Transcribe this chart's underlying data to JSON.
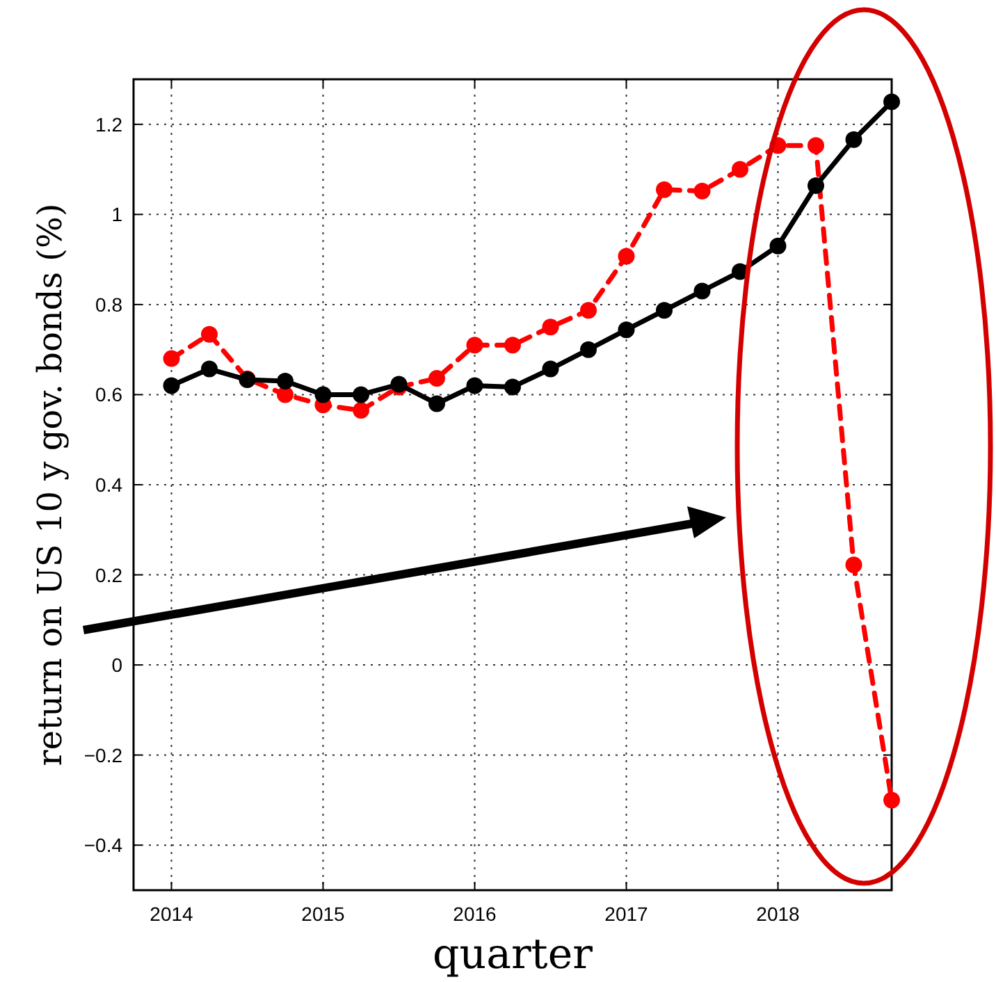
{
  "chart_data": {
    "type": "line",
    "xlabel": "quarter",
    "ylabel": "return on US 10 y gov. bonds (%)",
    "x": [
      2014,
      2014.25,
      2014.5,
      2014.75,
      2015,
      2015.25,
      2015.5,
      2015.75,
      2016,
      2016.25,
      2016.5,
      2016.75,
      2017,
      2017.25,
      2017.5,
      2017.75,
      2018,
      2018.25,
      2018.5,
      2018.75
    ],
    "series": [
      {
        "color": "#ff0000",
        "line_style": "dashed",
        "values": [
          0.68,
          0.734,
          0.635,
          0.6,
          0.577,
          0.565,
          0.617,
          0.636,
          0.71,
          0.71,
          0.75,
          0.787,
          0.907,
          1.055,
          1.052,
          1.1,
          1.153,
          1.153,
          0.222,
          -0.3
        ]
      },
      {
        "color": "#000000",
        "line_style": "solid",
        "values": [
          0.62,
          0.657,
          0.633,
          0.63,
          0.6,
          0.6,
          0.623,
          0.58,
          0.62,
          0.617,
          0.657,
          0.7,
          0.744,
          0.787,
          0.83,
          0.873,
          0.93,
          1.064,
          1.166,
          1.25
        ]
      }
    ],
    "xlim": [
      2013.75,
      2018.75
    ],
    "xticks": [
      2014,
      2015,
      2016,
      2017,
      2018
    ],
    "ylim": [
      -0.5,
      1.3
    ],
    "yticks": [
      -0.4,
      -0.2,
      0,
      0.2,
      0.4,
      0.6,
      0.8,
      1,
      1.2
    ],
    "grid": true,
    "marker": "circle"
  }
}
